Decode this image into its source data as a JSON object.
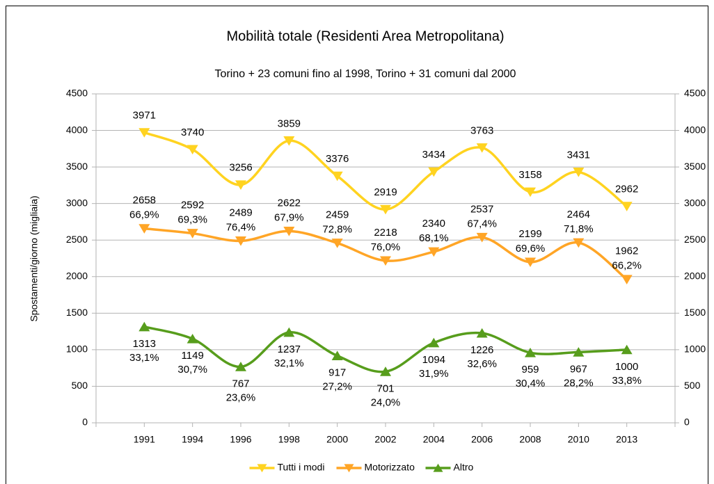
{
  "chart_data": {
    "type": "line",
    "title": "Mobilità totale (Residenti Area Metropolitana)",
    "subtitle": "Torino + 23 comuni fino al 1998, Torino + 31 comuni dal 2000",
    "y_label": "Spostamenti/giorno (migliaia)",
    "categories": [
      "1991",
      "1994",
      "1996",
      "1998",
      "2000",
      "2002",
      "2004",
      "2006",
      "2008",
      "2010",
      "2013"
    ],
    "series": [
      {
        "name": "Tutti i modi",
        "color": "#ffd320",
        "marker": "down",
        "values": [
          3971,
          3740,
          3256,
          3859,
          3376,
          2919,
          3434,
          3763,
          3158,
          3431,
          2962
        ]
      },
      {
        "name": "Motorizzato",
        "color": "#ffa526",
        "marker": "down",
        "values": [
          2658,
          2592,
          2489,
          2622,
          2459,
          2218,
          2340,
          2537,
          2199,
          2464,
          1962
        ],
        "share_labels": [
          "66,9%",
          "69,3%",
          "76,4%",
          "67,9%",
          "72,8%",
          "76,0%",
          "68,1%",
          "67,4%",
          "69,6%",
          "71,8%",
          "66,2%"
        ]
      },
      {
        "name": "Altro",
        "color": "#579d1c",
        "marker": "up",
        "values": [
          1313,
          1149,
          767,
          1237,
          917,
          701,
          1094,
          1226,
          959,
          967,
          1000
        ],
        "share_labels": [
          "33,1%",
          "30,7%",
          "23,6%",
          "32,1%",
          "27,2%",
          "24,0%",
          "31,9%",
          "32,6%",
          "30,4%",
          "28,2%",
          "33,8%"
        ]
      }
    ],
    "ylim": [
      0,
      4500
    ],
    "yticks": [
      0,
      500,
      1000,
      1500,
      2000,
      2500,
      3000,
      3500,
      4000,
      4500
    ],
    "y2lim": [
      0,
      4500
    ],
    "y2ticks": [
      0,
      500,
      1000,
      1500,
      2000,
      2500,
      3000,
      3500,
      4000,
      4500
    ],
    "grid": true,
    "smooth": true,
    "legend": "bottom"
  }
}
